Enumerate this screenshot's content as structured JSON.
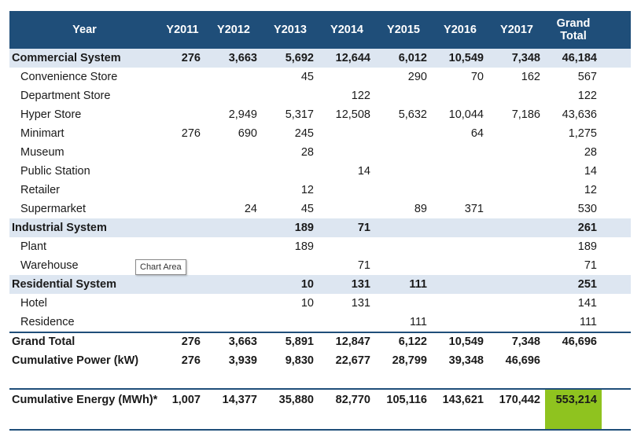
{
  "header": {
    "col0": "Year",
    "years": [
      "Y2011",
      "Y2012",
      "Y2013",
      "Y2014",
      "Y2015",
      "Y2016",
      "Y2017"
    ],
    "grand_total_line1": "Grand",
    "grand_total_line2": "Total"
  },
  "rows": {
    "commercial": {
      "label": "Commercial System",
      "vals": [
        "276",
        "3,663",
        "5,692",
        "12,644",
        "6,012",
        "10,549",
        "7,348",
        "46,184"
      ]
    },
    "convenience": {
      "label": "Convenience Store",
      "vals": [
        "",
        "",
        "45",
        "",
        "290",
        "70",
        "162",
        "567"
      ]
    },
    "department": {
      "label": "Department Store",
      "vals": [
        "",
        "",
        "",
        "122",
        "",
        "",
        "",
        "122"
      ]
    },
    "hyper": {
      "label": "Hyper Store",
      "vals": [
        "",
        "2,949",
        "5,317",
        "12,508",
        "5,632",
        "10,044",
        "7,186",
        "43,636"
      ]
    },
    "minimart": {
      "label": "Minimart",
      "vals": [
        "276",
        "690",
        "245",
        "",
        "",
        "64",
        "",
        "1,275"
      ]
    },
    "museum": {
      "label": "Museum",
      "vals": [
        "",
        "",
        "28",
        "",
        "",
        "",
        "",
        "28"
      ]
    },
    "publicstation": {
      "label": "Public Station",
      "vals": [
        "",
        "",
        "",
        "14",
        "",
        "",
        "",
        "14"
      ]
    },
    "retailer": {
      "label": "Retailer",
      "vals": [
        "",
        "",
        "12",
        "",
        "",
        "",
        "",
        "12"
      ]
    },
    "supermarket": {
      "label": "Supermarket",
      "vals": [
        "",
        "24",
        "45",
        "",
        "89",
        "371",
        "",
        "530"
      ]
    },
    "industrial": {
      "label": "Industrial System",
      "vals": [
        "",
        "",
        "189",
        "71",
        "",
        "",
        "",
        "261"
      ]
    },
    "plant": {
      "label": "Plant",
      "vals": [
        "",
        "",
        "189",
        "",
        "",
        "",
        "",
        "189"
      ]
    },
    "warehouse": {
      "label": "Warehouse",
      "vals": [
        "",
        "",
        "",
        "71",
        "",
        "",
        "",
        "71"
      ]
    },
    "residential": {
      "label": "Residential System",
      "vals": [
        "",
        "",
        "10",
        "131",
        "111",
        "",
        "",
        "251"
      ]
    },
    "hotel": {
      "label": "Hotel",
      "vals": [
        "",
        "",
        "10",
        "131",
        "",
        "",
        "",
        "141"
      ]
    },
    "residence": {
      "label": "Residence",
      "vals": [
        "",
        "",
        "",
        "",
        "111",
        "",
        "",
        "111"
      ]
    },
    "grandtotal": {
      "label": "Grand Total",
      "vals": [
        "276",
        "3,663",
        "5,891",
        "12,847",
        "6,122",
        "10,549",
        "7,348",
        "46,696"
      ]
    },
    "cumpower": {
      "label": "Cumulative Power (kW)",
      "vals": [
        "276",
        "3,939",
        "9,830",
        "22,677",
        "28,799",
        "39,348",
        "46,696",
        ""
      ]
    },
    "cumenergy": {
      "label": "Cumulative Energy (MWh)*",
      "vals": [
        "1,007",
        "14,377",
        "35,880",
        "82,770",
        "105,116",
        "143,621",
        "170,442",
        "553,214"
      ]
    }
  },
  "tooltip": "Chart Area",
  "colors": {
    "header_bg": "#1f4e79",
    "group_bg": "#dde6f1",
    "highlight": "#8fc31f"
  }
}
